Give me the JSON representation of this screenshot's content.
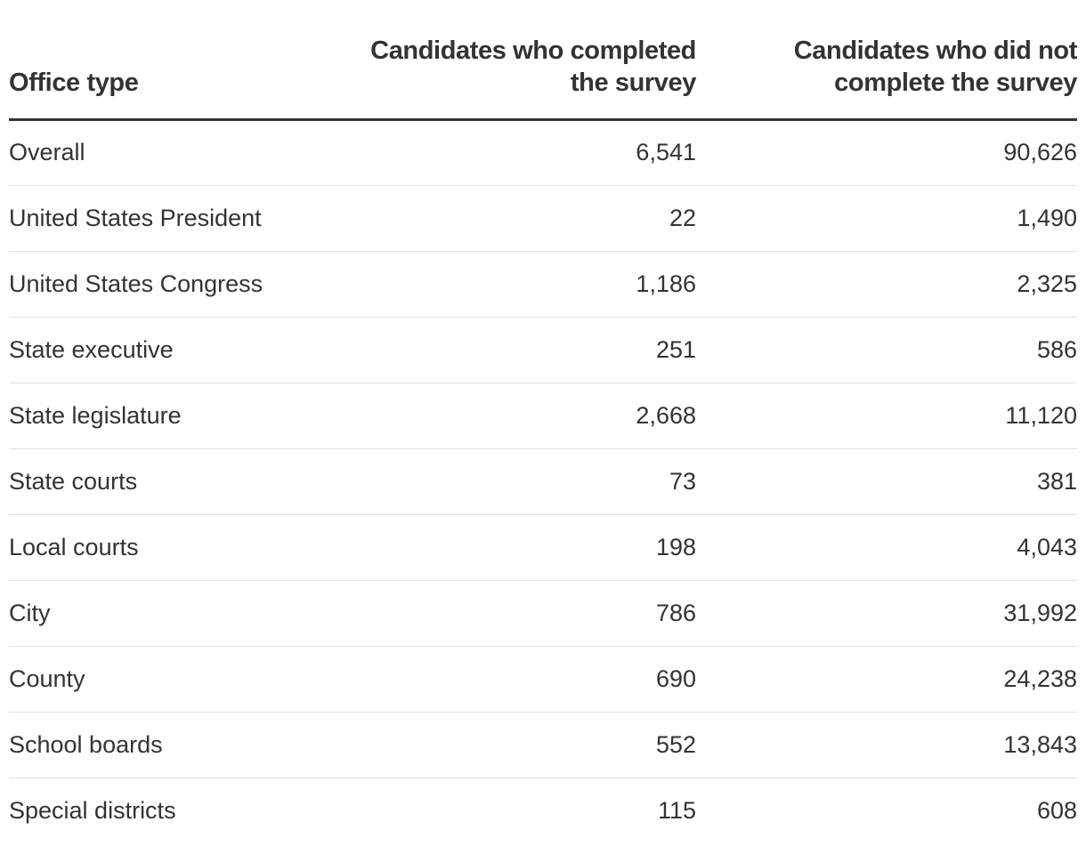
{
  "chart_data": {
    "type": "table",
    "columns": [
      "Office type",
      "Candidates who completed the survey",
      "Candidates who did not complete the survey"
    ],
    "rows": [
      {
        "office": "Overall",
        "completed": "6,541",
        "not_completed": "90,626"
      },
      {
        "office": "United States President",
        "completed": "22",
        "not_completed": "1,490"
      },
      {
        "office": "United States Congress",
        "completed": "1,186",
        "not_completed": "2,325"
      },
      {
        "office": "State executive",
        "completed": "251",
        "not_completed": "586"
      },
      {
        "office": "State legislature",
        "completed": "2,668",
        "not_completed": "11,120"
      },
      {
        "office": "State courts",
        "completed": "73",
        "not_completed": "381"
      },
      {
        "office": "Local courts",
        "completed": "198",
        "not_completed": "4,043"
      },
      {
        "office": "City",
        "completed": "786",
        "not_completed": "31,992"
      },
      {
        "office": "County",
        "completed": "690",
        "not_completed": "24,238"
      },
      {
        "office": "School boards",
        "completed": "552",
        "not_completed": "13,843"
      },
      {
        "office": "Special districts",
        "completed": "115",
        "not_completed": "608"
      }
    ]
  }
}
